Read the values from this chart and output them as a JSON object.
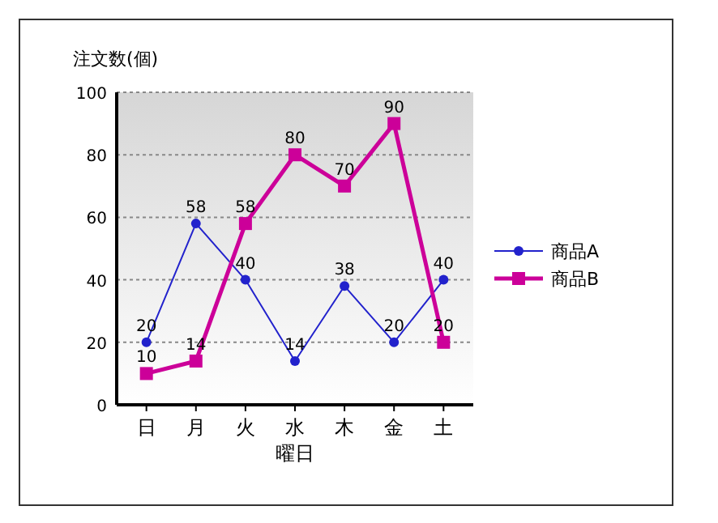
{
  "chart_data": {
    "type": "line",
    "ylabel": "注文数(個)",
    "xlabel": "曜日",
    "categories": [
      "日",
      "月",
      "火",
      "水",
      "木",
      "金",
      "土"
    ],
    "series": [
      {
        "name": "商品A",
        "color": "#2222cc",
        "marker": "circle",
        "values": [
          20,
          58,
          40,
          14,
          38,
          20,
          40
        ]
      },
      {
        "name": "商品B",
        "color": "#cc0099",
        "marker": "square",
        "values": [
          10,
          14,
          58,
          80,
          70,
          90,
          20
        ]
      }
    ],
    "ylim": [
      0,
      100
    ],
    "yticks": [
      0,
      20,
      40,
      60,
      80,
      100
    ],
    "grid": "y",
    "legend": "right",
    "data_labels": true
  }
}
